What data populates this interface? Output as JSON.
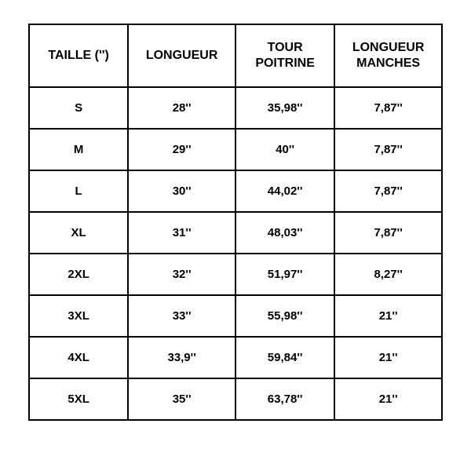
{
  "table": {
    "type": "table",
    "columns": [
      "TAILLE ('')",
      "LONGUEUR",
      "TOUR POITRINE",
      "LONGUEUR MANCHES"
    ],
    "rows": [
      [
        "S",
        "28''",
        "35,98''",
        "7,87''"
      ],
      [
        "M",
        "29''",
        "40''",
        "7,87''"
      ],
      [
        "L",
        "30''",
        "44,02''",
        "7,87''"
      ],
      [
        "XL",
        "31''",
        "48,03''",
        "7,87''"
      ],
      [
        "2XL",
        "32''",
        "51,97''",
        "8,27''"
      ],
      [
        "3XL",
        "33''",
        "55,98''",
        "21''"
      ],
      [
        "4XL",
        "33,9''",
        "59,84''",
        "21''"
      ],
      [
        "5XL",
        "35''",
        "63,78''",
        "21''"
      ]
    ],
    "border_color": "#000000",
    "background_color": "#ffffff",
    "text_color": "#000000",
    "header_fontsize": 16,
    "cell_fontsize": 15,
    "font_weight": "900",
    "header_row_height": 80,
    "body_row_height": 53,
    "column_widths_pct": [
      24,
      26,
      24,
      26
    ]
  }
}
